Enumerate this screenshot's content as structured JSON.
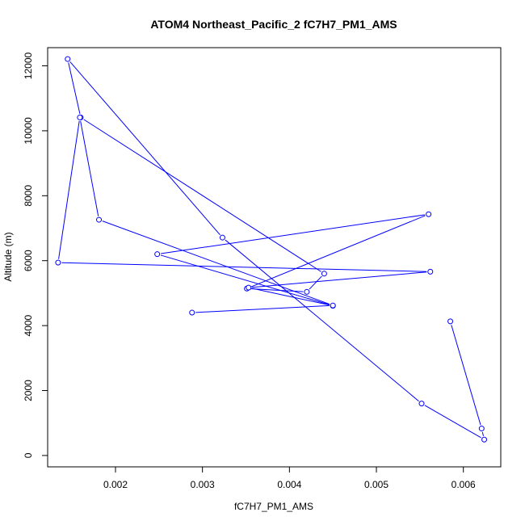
{
  "chart_data": {
    "type": "line",
    "title": "ATOM4 Northeast_Pacific_2 fC7H7_PM1_AMS",
    "xlabel": "fC7H7_PM1_AMS",
    "ylabel": "Altitude (m)",
    "xlim": [
      0.00122,
      0.00643
    ],
    "ylim": [
      -350,
      12560
    ],
    "xticks": [
      0.002,
      0.003,
      0.004,
      0.005,
      0.006
    ],
    "xtick_labels": [
      "0.002",
      "0.003",
      "0.004",
      "0.005",
      "0.006"
    ],
    "yticks": [
      0,
      2000,
      4000,
      6000,
      8000,
      10000,
      12000
    ],
    "ytick_labels": [
      "0",
      "2000",
      "4000",
      "6000",
      "8000",
      "10000",
      "12000"
    ],
    "grid": false,
    "series": [
      {
        "color": "#0000ff",
        "marker": "open-circle",
        "x": [
          0.00585,
          0.00621,
          0.00624,
          0.00552,
          0.00323,
          0.00145,
          0.0016,
          0.0044,
          0.0042,
          0.00351,
          0.0056,
          0.00248,
          0.0045,
          0.00353,
          0.00562,
          0.00134,
          0.00159,
          0.00181,
          0.0045,
          0.00288
        ],
        "y": [
          4130,
          830,
          490,
          1600,
          6710,
          12210,
          10410,
          5600,
          5040,
          5140,
          7430,
          6200,
          4610,
          5170,
          5660,
          5940,
          10410,
          7260,
          4620,
          4400
        ]
      }
    ]
  }
}
